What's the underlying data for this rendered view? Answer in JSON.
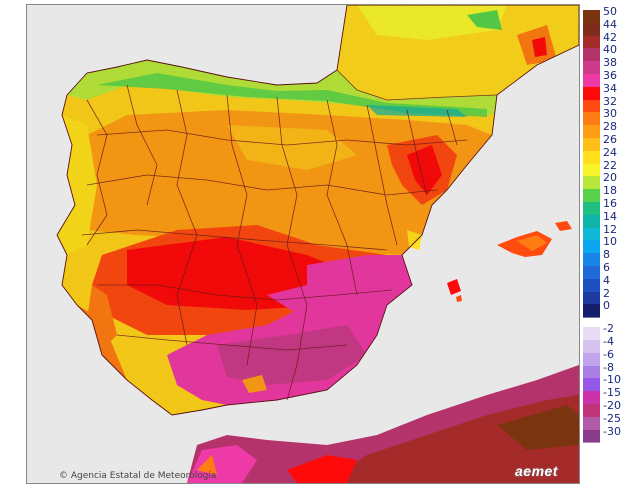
{
  "credit": "Agencia Estatal de Meteorología",
  "logo_text": "aemet",
  "legend": {
    "positive": [
      {
        "label": "50",
        "color": "#7a3510"
      },
      {
        "label": "44",
        "color": "#7f2b1e"
      },
      {
        "label": "42",
        "color": "#a52a2a"
      },
      {
        "label": "40",
        "color": "#b3336a"
      },
      {
        "label": "38",
        "color": "#cc3b8a"
      },
      {
        "label": "36",
        "color": "#ee3aa6"
      },
      {
        "label": "34",
        "color": "#ff0a0a"
      },
      {
        "label": "32",
        "color": "#ff4a10"
      },
      {
        "label": "30",
        "color": "#ff7c12"
      },
      {
        "label": "28",
        "color": "#ff9e15"
      },
      {
        "label": "26",
        "color": "#ffbe18"
      },
      {
        "label": "24",
        "color": "#ffe01a"
      },
      {
        "label": "22",
        "color": "#f7f52a"
      },
      {
        "label": "20",
        "color": "#b9e83a"
      },
      {
        "label": "18",
        "color": "#58d24a"
      },
      {
        "label": "16",
        "color": "#1fbf80"
      },
      {
        "label": "14",
        "color": "#10b3a8"
      },
      {
        "label": "12",
        "color": "#10b8d8"
      },
      {
        "label": "10",
        "color": "#0aa6ef"
      },
      {
        "label": "8",
        "color": "#1885e8"
      },
      {
        "label": "6",
        "color": "#1f6ad8"
      },
      {
        "label": "4",
        "color": "#1e4fc0"
      },
      {
        "label": "2",
        "color": "#1c3aa0"
      },
      {
        "label": "0",
        "color": "#141f6e"
      }
    ],
    "negative": [
      {
        "label": "-2",
        "color": "#e6dcf5"
      },
      {
        "label": "-4",
        "color": "#d5c2ef"
      },
      {
        "label": "-6",
        "color": "#c1a5ea"
      },
      {
        "label": "-8",
        "color": "#a97fe6"
      },
      {
        "label": "-10",
        "color": "#9457e8"
      },
      {
        "label": "-15",
        "color": "#cc33aa"
      },
      {
        "label": "-20",
        "color": "#c0327a"
      },
      {
        "label": "-25",
        "color": "#b05aa8"
      },
      {
        "label": "-30",
        "color": "#8a3c8c"
      }
    ]
  }
}
